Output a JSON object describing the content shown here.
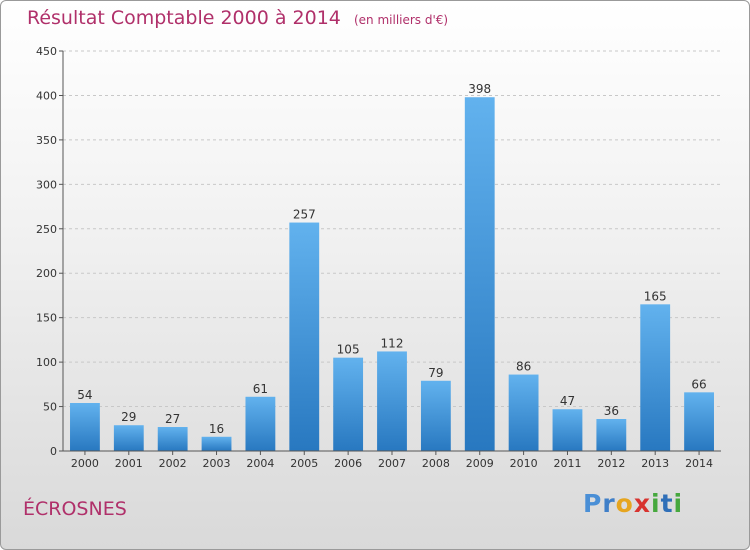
{
  "title": "Résultat Comptable 2000 à 2014",
  "unit": "(en milliers d'€)",
  "commune": "ÉCROSNES",
  "logo": {
    "letters": [
      "P",
      "r",
      "o",
      "x",
      "i",
      "t",
      "i"
    ],
    "colors": [
      "#4a8fd6",
      "#3f7fc8",
      "#e6a51f",
      "#d8332f",
      "#46a83e",
      "#2f6fb8",
      "#46a83e"
    ]
  },
  "colors": {
    "bar_top": "#62b2ee",
    "bar_bottom": "#2878c0",
    "title": "#b0306a",
    "grid": "#c8c8c8"
  },
  "chart_data": {
    "type": "bar",
    "title": "Résultat Comptable 2000 à 2014",
    "xlabel": "",
    "ylabel": "(en milliers d'€)",
    "ylim": [
      0,
      450
    ],
    "yticks": [
      0,
      50,
      100,
      150,
      200,
      250,
      300,
      350,
      400,
      450
    ],
    "categories": [
      "2000",
      "2001",
      "2002",
      "2003",
      "2004",
      "2005",
      "2006",
      "2007",
      "2008",
      "2009",
      "2010",
      "2011",
      "2012",
      "2013",
      "2014"
    ],
    "values": [
      54,
      29,
      27,
      16,
      61,
      257,
      105,
      112,
      79,
      398,
      86,
      47,
      36,
      165,
      66
    ]
  }
}
